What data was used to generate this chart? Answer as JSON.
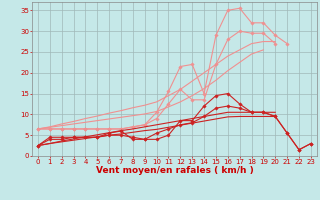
{
  "x": [
    0,
    1,
    2,
    3,
    4,
    5,
    6,
    7,
    8,
    9,
    10,
    11,
    12,
    13,
    14,
    15,
    16,
    17,
    18,
    19,
    20,
    21,
    22,
    23
  ],
  "series": [
    {
      "name": "light_peaked1",
      "color": "#f09090",
      "lw": 0.8,
      "marker": "D",
      "ms": 1.8,
      "values": [
        6.5,
        6.5,
        6.5,
        6.5,
        6.5,
        6.5,
        6.5,
        6.5,
        7.0,
        7.5,
        10.5,
        15.5,
        21.5,
        22.0,
        15.0,
        29.0,
        35.0,
        35.5,
        32.0,
        32.0,
        29.0,
        27.0,
        null,
        null
      ]
    },
    {
      "name": "light_peaked2",
      "color": "#f09090",
      "lw": 0.8,
      "marker": "D",
      "ms": 1.8,
      "values": [
        6.5,
        6.5,
        6.5,
        6.5,
        6.5,
        6.5,
        6.5,
        6.5,
        7.0,
        7.5,
        9.0,
        12.5,
        16.0,
        13.5,
        13.5,
        22.0,
        28.0,
        30.0,
        29.5,
        29.5,
        27.0,
        null,
        null,
        null
      ]
    },
    {
      "name": "light_trend1",
      "color": "#f09090",
      "lw": 0.8,
      "marker": null,
      "ms": 0,
      "values": [
        6.5,
        7.0,
        7.7,
        8.3,
        9.0,
        9.6,
        10.3,
        10.9,
        11.6,
        12.2,
        13.0,
        14.5,
        16.0,
        18.0,
        20.0,
        22.0,
        24.0,
        25.5,
        27.0,
        27.5,
        27.5,
        null,
        null,
        null
      ]
    },
    {
      "name": "light_trend2",
      "color": "#f09090",
      "lw": 0.8,
      "marker": null,
      "ms": 0,
      "values": [
        6.5,
        6.9,
        7.3,
        7.7,
        8.1,
        8.5,
        8.9,
        9.3,
        9.7,
        10.1,
        10.7,
        11.8,
        13.0,
        14.5,
        16.2,
        18.2,
        20.5,
        22.5,
        24.5,
        25.5,
        null,
        null,
        null,
        null
      ]
    },
    {
      "name": "dark_peaked1",
      "color": "#cc2222",
      "lw": 0.8,
      "marker": "D",
      "ms": 1.8,
      "values": [
        2.5,
        4.5,
        4.5,
        4.5,
        4.5,
        4.5,
        5.5,
        6.0,
        4.0,
        4.0,
        4.0,
        5.0,
        8.5,
        8.5,
        12.0,
        14.5,
        15.0,
        12.5,
        10.5,
        10.5,
        9.5,
        5.5,
        1.5,
        3.0
      ]
    },
    {
      "name": "dark_peaked2",
      "color": "#cc2222",
      "lw": 0.8,
      "marker": "D",
      "ms": 1.8,
      "values": [
        2.5,
        4.0,
        4.0,
        4.5,
        4.5,
        4.5,
        5.0,
        5.0,
        4.5,
        4.0,
        5.5,
        6.5,
        7.5,
        8.0,
        9.5,
        11.5,
        12.0,
        11.5,
        10.5,
        10.5,
        9.5,
        5.5,
        1.5,
        3.0
      ]
    },
    {
      "name": "dark_trend1",
      "color": "#cc2222",
      "lw": 0.8,
      "marker": null,
      "ms": 0,
      "values": [
        2.5,
        3.0,
        3.6,
        4.1,
        4.6,
        5.1,
        5.6,
        6.1,
        6.5,
        7.0,
        7.5,
        8.0,
        8.5,
        9.0,
        9.5,
        10.0,
        10.5,
        10.5,
        10.5,
        10.5,
        10.5,
        null,
        null,
        null
      ]
    },
    {
      "name": "dark_trend2",
      "color": "#cc2222",
      "lw": 0.8,
      "marker": null,
      "ms": 0,
      "values": [
        2.5,
        3.0,
        3.4,
        3.8,
        4.2,
        4.6,
        5.0,
        5.3,
        5.7,
        6.1,
        6.4,
        6.9,
        7.4,
        7.9,
        8.4,
        8.9,
        9.4,
        9.5,
        9.5,
        9.5,
        9.5,
        null,
        null,
        null
      ]
    }
  ],
  "xlabel": "Vent moyen/en rafales ( km/h )",
  "xlim": [
    -0.5,
    23.5
  ],
  "ylim": [
    0,
    37
  ],
  "yticks": [
    0,
    5,
    10,
    15,
    20,
    25,
    30,
    35
  ],
  "xticks": [
    0,
    1,
    2,
    3,
    4,
    5,
    6,
    7,
    8,
    9,
    10,
    11,
    12,
    13,
    14,
    15,
    16,
    17,
    18,
    19,
    20,
    21,
    22,
    23
  ],
  "bg_color": "#c5e8e8",
  "grid_color": "#a0b8b8",
  "xlabel_color": "#cc0000",
  "tick_color": "#cc0000",
  "tick_fontsize": 5.0,
  "xlabel_fontsize": 6.5
}
